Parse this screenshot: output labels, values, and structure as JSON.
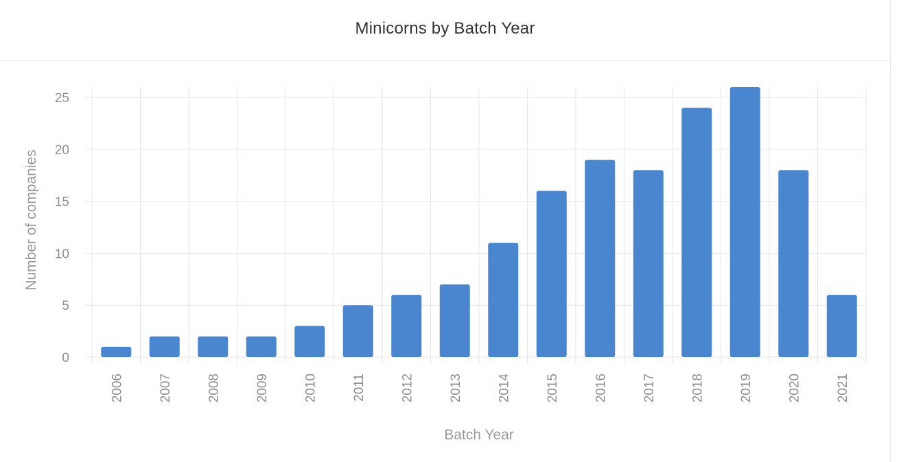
{
  "chart_data": {
    "type": "bar",
    "title": "Minicorns by Batch Year",
    "xlabel": "Batch Year",
    "ylabel": "Number of companies",
    "categories": [
      "2006",
      "2007",
      "2008",
      "2009",
      "2010",
      "2011",
      "2012",
      "2013",
      "2014",
      "2015",
      "2016",
      "2017",
      "2018",
      "2019",
      "2020",
      "2021"
    ],
    "values": [
      1,
      2,
      2,
      2,
      3,
      5,
      6,
      7,
      11,
      16,
      19,
      18,
      24,
      26,
      18,
      6
    ],
    "ylim": [
      0,
      26
    ],
    "yticks": [
      0,
      5,
      10,
      15,
      20,
      25
    ],
    "grid": true,
    "legend": "none",
    "bar_color": "#4a86cf",
    "grid_color": "#e6e6e6"
  }
}
